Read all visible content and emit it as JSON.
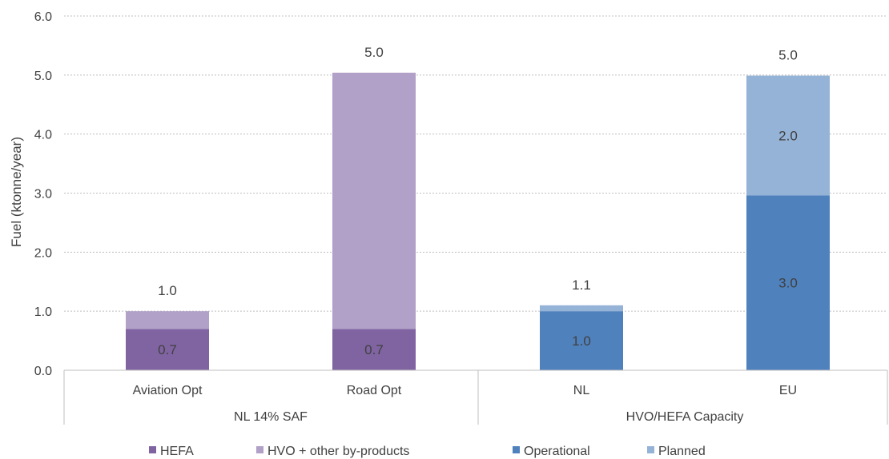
{
  "chart_data": {
    "type": "bar",
    "stacked": true,
    "ylabel": "Fuel (ktonne/year)",
    "ylim": [
      0,
      6
    ],
    "yticks": [
      "0.0",
      "1.0",
      "2.0",
      "3.0",
      "4.0",
      "5.0",
      "6.0"
    ],
    "grid": true,
    "legend_position": "bottom",
    "categories": [
      "Aviation Opt",
      "Road Opt",
      "NL",
      "EU"
    ],
    "groups": [
      {
        "label": "NL 14% SAF",
        "categories": [
          "Aviation Opt",
          "Road Opt"
        ]
      },
      {
        "label": "HVO/HEFA Capacity",
        "categories": [
          "NL",
          "EU"
        ]
      }
    ],
    "series": [
      {
        "name": "HEFA",
        "color": "#8064a2",
        "values": [
          0.7,
          0.7,
          0,
          0
        ],
        "labels": [
          "0.7",
          "0.7",
          "",
          ""
        ]
      },
      {
        "name": "HVO + other by-products",
        "color": "#b1a0c7",
        "values": [
          0.3,
          4.34,
          0,
          0
        ],
        "labels": [
          "",
          "",
          "",
          ""
        ]
      },
      {
        "name": "Operational",
        "color": "#4f81bd",
        "values": [
          0,
          0,
          1.0,
          2.96
        ],
        "labels": [
          "",
          "",
          "1.0",
          "3.0"
        ]
      },
      {
        "name": "Planned",
        "color": "#95b3d7",
        "values": [
          0,
          0,
          0.1,
          2.03
        ],
        "labels": [
          "",
          "",
          "",
          "2.0"
        ]
      }
    ],
    "totals": [
      "1.0",
      "5.0",
      "1.1",
      "5.0"
    ]
  }
}
